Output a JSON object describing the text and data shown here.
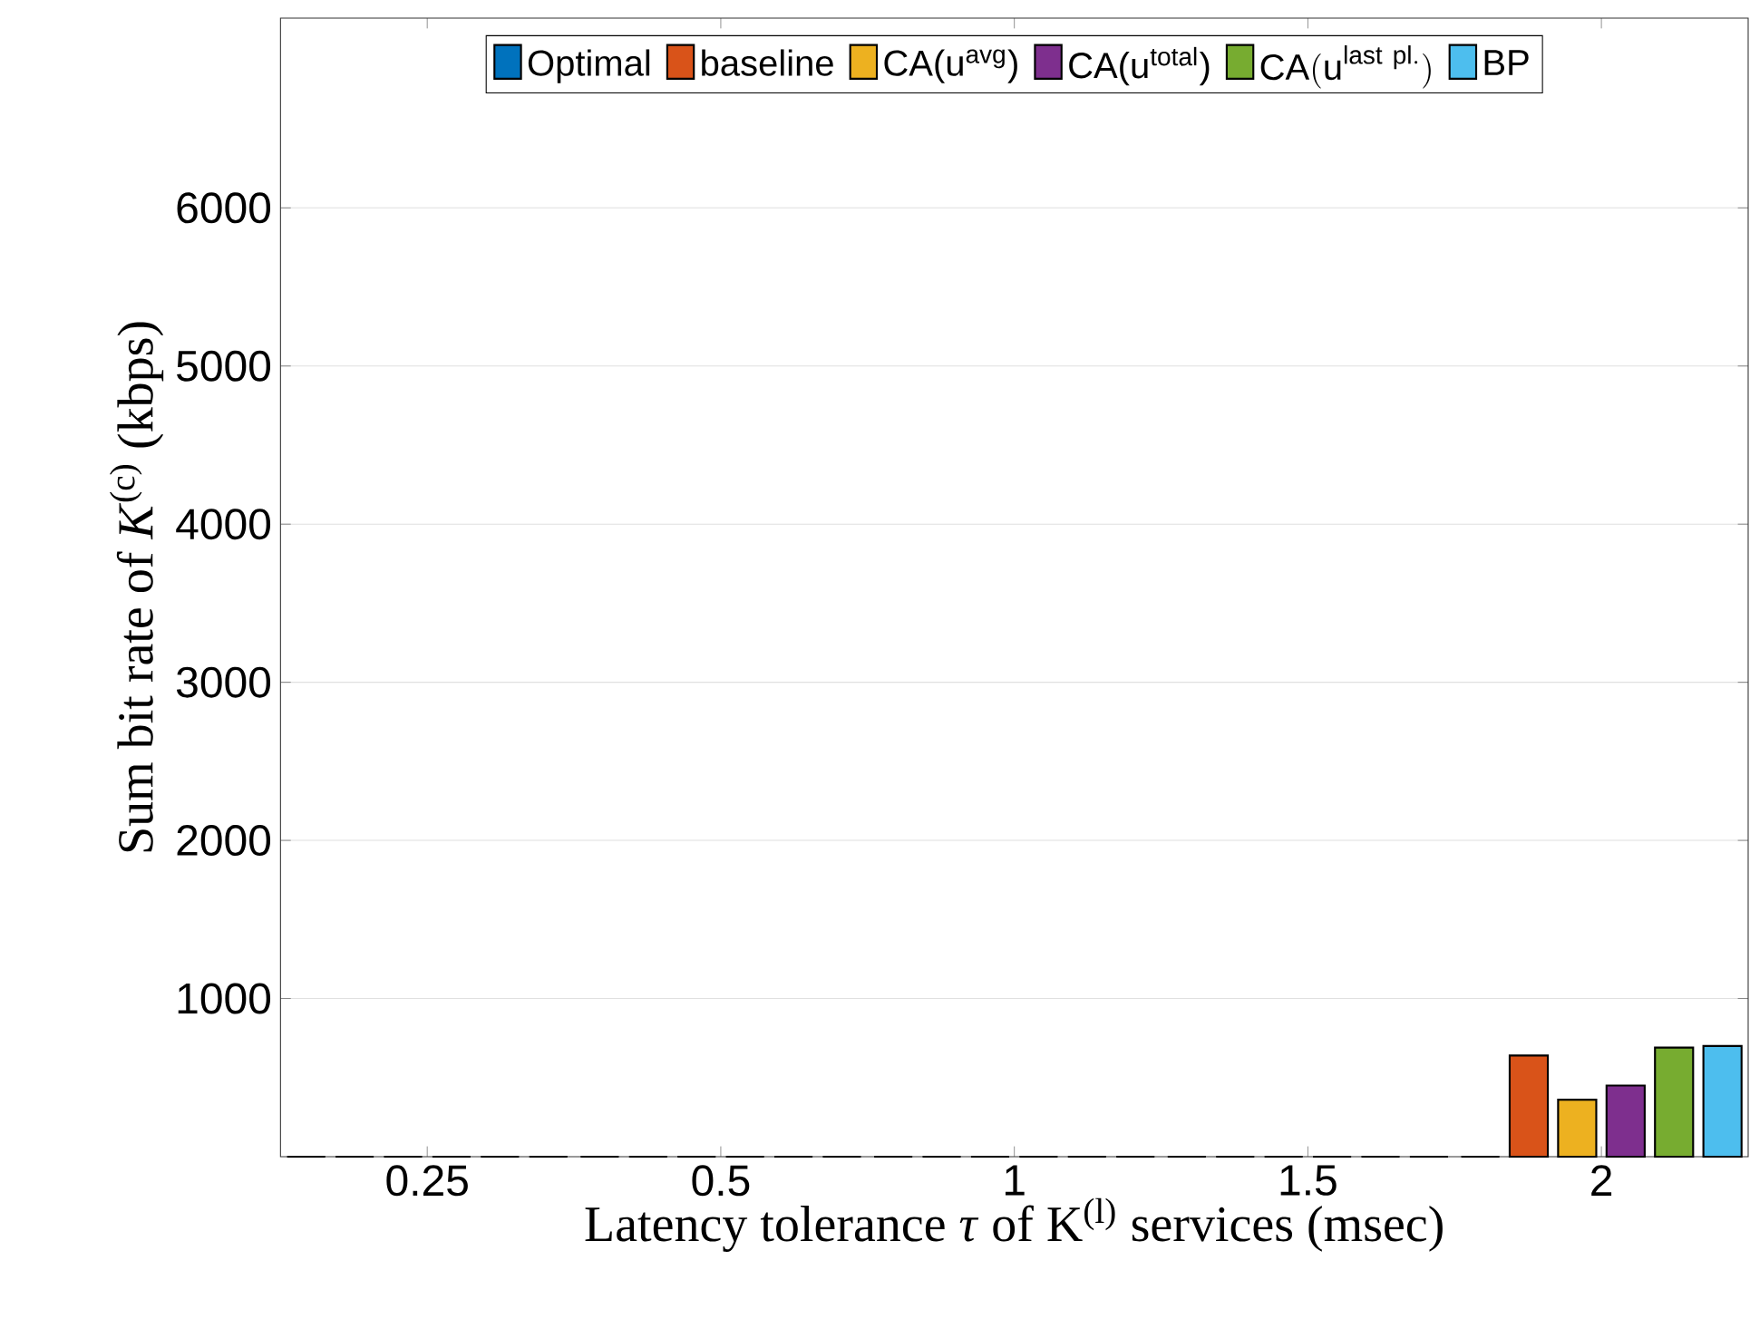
{
  "chart_data": {
    "type": "bar",
    "xlabel": "Latency tolerance *τ* of K$^{(l)}$ services (msec)",
    "ylabel": "Sum bit rate of *K*$^{(c)}$ (kbps)",
    "categories": [
      "0.25",
      "0.5",
      "1",
      "1.5",
      "2"
    ],
    "series": [
      {
        "name": "Optimal",
        "color": "#0072bd",
        "values": [
          0,
          0,
          0,
          0,
          0
        ]
      },
      {
        "name": "baseline",
        "color": "#d95319",
        "values": [
          0,
          0,
          0,
          0,
          640
        ]
      },
      {
        "name": "CA(u$^{avg}$)",
        "color": "#edb120",
        "values": [
          0,
          0,
          0,
          0,
          360
        ]
      },
      {
        "name": "CA(u$^{total}$)",
        "color": "#7e2f8e",
        "values": [
          0,
          0,
          0,
          0,
          450
        ]
      },
      {
        "name": "\\mathrm{CA(u}^{\\mathrm{last\\ pl.}}\\mathrm{)}",
        "color": "#77ac30",
        "values": [
          0,
          0,
          0,
          0,
          690
        ]
      },
      {
        "name": "BP",
        "color": "#4dbeee",
        "values": [
          0,
          0,
          0,
          0,
          700
        ]
      }
    ],
    "ylim": [
      0,
      7200
    ],
    "yticks": [
      1000,
      2000,
      3000,
      4000,
      5000,
      6000
    ],
    "grid": "y",
    "legend": "top"
  }
}
